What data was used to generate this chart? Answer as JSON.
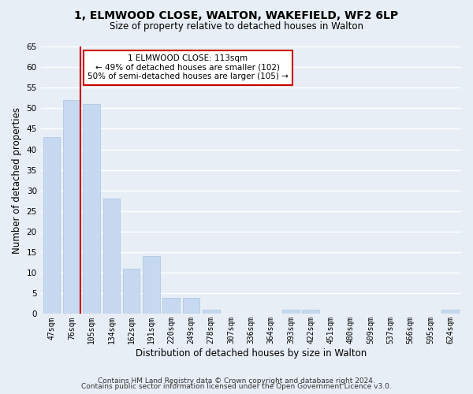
{
  "title1": "1, ELMWOOD CLOSE, WALTON, WAKEFIELD, WF2 6LP",
  "title2": "Size of property relative to detached houses in Walton",
  "xlabel": "Distribution of detached houses by size in Walton",
  "ylabel": "Number of detached properties",
  "bar_labels": [
    "47sqm",
    "76sqm",
    "105sqm",
    "134sqm",
    "162sqm",
    "191sqm",
    "220sqm",
    "249sqm",
    "278sqm",
    "307sqm",
    "336sqm",
    "364sqm",
    "393sqm",
    "422sqm",
    "451sqm",
    "480sqm",
    "509sqm",
    "537sqm",
    "566sqm",
    "595sqm",
    "624sqm"
  ],
  "bar_values": [
    43,
    52,
    51,
    28,
    11,
    14,
    4,
    4,
    1,
    0,
    0,
    0,
    1,
    1,
    0,
    0,
    0,
    0,
    0,
    0,
    1
  ],
  "bar_color": "#c6d9f0",
  "bar_edge_color": "#a8c4e0",
  "highlight_line_color": "#cc0000",
  "annotation_title": "1 ELMWOOD CLOSE: 113sqm",
  "annotation_line1": "← 49% of detached houses are smaller (102)",
  "annotation_line2": "50% of semi-detached houses are larger (105) →",
  "annotation_box_color": "#ffffff",
  "annotation_box_edge": "#cc0000",
  "ylim": [
    0,
    65
  ],
  "yticks": [
    0,
    5,
    10,
    15,
    20,
    25,
    30,
    35,
    40,
    45,
    50,
    55,
    60,
    65
  ],
  "footer1": "Contains HM Land Registry data © Crown copyright and database right 2024.",
  "footer2": "Contains public sector information licensed under the Open Government Licence v3.0.",
  "bg_color": "#e8eef5",
  "plot_bg_color": "#e8eef5",
  "grid_color": "#ffffff",
  "title1_fontsize": 10,
  "title2_fontsize": 8.5
}
